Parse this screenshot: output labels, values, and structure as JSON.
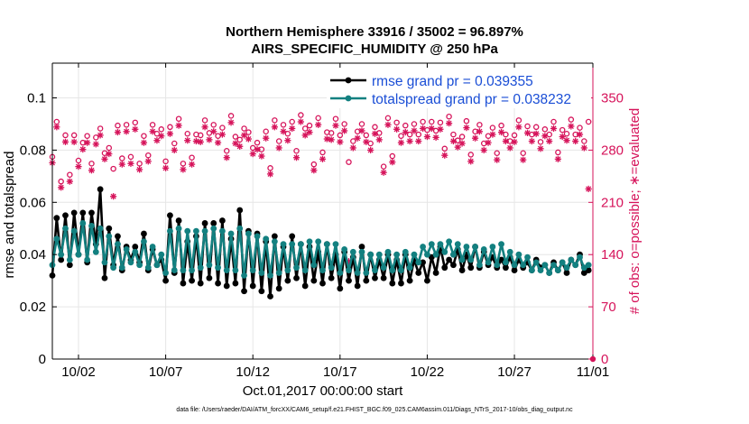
{
  "chart_data": {
    "type": "line",
    "title": "Northern Hemisphere 33916 / 35002 = 96.897%",
    "subtitle": "AIRS_SPECIFIC_HUMIDITY @ 250 hPa",
    "xlabel": "Oct.01,2017 00:00:00 start",
    "ylabel": "rmse and totalspread",
    "y2label": "# of obs: o=possible; ∗=evaluated",
    "footnote": "data file: /Users/raeder/DAI/ATM_forcXX/CAM6_setup/f.e21.FHIST_BGC.f09_025.CAM6assim.011/Diags_NTrS_2017-10/obs_diag_output.nc",
    "xlim": [
      0.5,
      31.5
    ],
    "ylim": [
      0,
      0.1133
    ],
    "y2lim": [
      0,
      396.6
    ],
    "xticks": [
      2,
      7,
      12,
      17,
      22,
      27,
      32
    ],
    "xtick_labels": [
      "10/02",
      "10/07",
      "10/12",
      "10/17",
      "10/22",
      "10/27",
      "11/01"
    ],
    "yticks": [
      0,
      0.02,
      0.04,
      0.06,
      0.08,
      0.1
    ],
    "ytick_labels": [
      "0",
      "0.02",
      "0.04",
      "0.06",
      "0.08",
      "0.1"
    ],
    "y2ticks": [
      0,
      70,
      140,
      210,
      280,
      350
    ],
    "y2tick_labels": [
      "0",
      "70",
      "140",
      "210",
      "280",
      "350"
    ],
    "grid": true,
    "legend_position": "top-right",
    "colors": {
      "rmse": "#000000",
      "spread": "#138080",
      "obs": "#d6135a",
      "legend_text": "#1a4ed6"
    },
    "series": [
      {
        "name": "rmse grand pr = 0.039355",
        "style": "line-marker",
        "x": [
          0.5,
          0.75,
          1.0,
          1.25,
          1.5,
          1.75,
          2.0,
          2.25,
          2.5,
          2.75,
          3.0,
          3.25,
          3.5,
          3.75,
          4.0,
          4.25,
          4.5,
          4.75,
          5.0,
          5.25,
          5.5,
          5.75,
          6.0,
          6.25,
          6.5,
          6.75,
          7.0,
          7.25,
          7.5,
          7.75,
          8.0,
          8.25,
          8.5,
          8.75,
          9.0,
          9.25,
          9.5,
          9.75,
          10.0,
          10.25,
          10.5,
          10.75,
          11.0,
          11.25,
          11.5,
          11.75,
          12.0,
          12.25,
          12.5,
          12.75,
          13.0,
          13.25,
          13.5,
          13.75,
          14.0,
          14.25,
          14.5,
          14.75,
          15.0,
          15.25,
          15.5,
          15.75,
          16.0,
          16.25,
          16.5,
          16.75,
          17.0,
          17.25,
          17.5,
          17.75,
          18.0,
          18.25,
          18.5,
          18.75,
          19.0,
          19.25,
          19.5,
          19.75,
          20.0,
          20.25,
          20.5,
          20.75,
          21.0,
          21.25,
          21.5,
          21.75,
          22.0,
          22.25,
          22.5,
          22.75,
          23.0,
          23.25,
          23.5,
          23.75,
          24.0,
          24.25,
          24.5,
          24.75,
          25.0,
          25.25,
          25.5,
          25.75,
          26.0,
          26.25,
          26.5,
          26.75,
          27.0,
          27.25,
          27.5,
          27.75,
          28.0,
          28.25,
          28.5,
          28.75,
          29.0,
          29.25,
          29.5,
          29.75,
          30.0,
          30.25,
          30.5,
          30.75,
          31.0,
          31.25
        ],
        "y": [
          0.032,
          0.054,
          0.038,
          0.055,
          0.036,
          0.056,
          0.04,
          0.056,
          0.037,
          0.056,
          0.044,
          0.065,
          0.031,
          0.05,
          0.036,
          0.047,
          0.034,
          0.043,
          0.038,
          0.043,
          0.037,
          0.048,
          0.034,
          0.042,
          0.036,
          0.038,
          0.03,
          0.055,
          0.033,
          0.053,
          0.029,
          0.045,
          0.03,
          0.047,
          0.029,
          0.052,
          0.031,
          0.052,
          0.029,
          0.053,
          0.028,
          0.046,
          0.029,
          0.057,
          0.026,
          0.049,
          0.028,
          0.048,
          0.026,
          0.045,
          0.024,
          0.047,
          0.027,
          0.043,
          0.03,
          0.047,
          0.031,
          0.044,
          0.028,
          0.043,
          0.03,
          0.041,
          0.029,
          0.044,
          0.031,
          0.04,
          0.027,
          0.041,
          0.03,
          0.039,
          0.028,
          0.043,
          0.03,
          0.04,
          0.031,
          0.038,
          0.031,
          0.04,
          0.029,
          0.038,
          0.029,
          0.04,
          0.03,
          0.038,
          0.033,
          0.037,
          0.03,
          0.039,
          0.033,
          0.043,
          0.035,
          0.038,
          0.036,
          0.042,
          0.034,
          0.04,
          0.035,
          0.043,
          0.035,
          0.041,
          0.036,
          0.039,
          0.035,
          0.038,
          0.035,
          0.039,
          0.034,
          0.038,
          0.035,
          0.037,
          0.034,
          0.038,
          0.035,
          0.036,
          0.033,
          0.037,
          0.034,
          0.037,
          0.033,
          0.038,
          0.036,
          0.04,
          0.033,
          0.034
        ]
      },
      {
        "name": "totalspread grand pr = 0.038232",
        "style": "line-marker",
        "x": [
          0.5,
          0.75,
          1.0,
          1.25,
          1.5,
          1.75,
          2.0,
          2.25,
          2.5,
          2.75,
          3.0,
          3.25,
          3.5,
          3.75,
          4.0,
          4.25,
          4.5,
          4.75,
          5.0,
          5.25,
          5.5,
          5.75,
          6.0,
          6.25,
          6.5,
          6.75,
          7.0,
          7.25,
          7.5,
          7.75,
          8.0,
          8.25,
          8.5,
          8.75,
          9.0,
          9.25,
          9.5,
          9.75,
          10.0,
          10.25,
          10.5,
          10.75,
          11.0,
          11.25,
          11.5,
          11.75,
          12.0,
          12.25,
          12.5,
          12.75,
          13.0,
          13.25,
          13.5,
          13.75,
          14.0,
          14.25,
          14.5,
          14.75,
          15.0,
          15.25,
          15.5,
          15.75,
          16.0,
          16.25,
          16.5,
          16.75,
          17.0,
          17.25,
          17.5,
          17.75,
          18.0,
          18.25,
          18.5,
          18.75,
          19.0,
          19.25,
          19.5,
          19.75,
          20.0,
          20.25,
          20.5,
          20.75,
          21.0,
          21.25,
          21.5,
          21.75,
          22.0,
          22.25,
          22.5,
          22.75,
          23.0,
          23.25,
          23.5,
          23.75,
          24.0,
          24.25,
          24.5,
          24.75,
          25.0,
          25.25,
          25.5,
          25.75,
          26.0,
          26.25,
          26.5,
          26.75,
          27.0,
          27.25,
          27.5,
          27.75,
          28.0,
          28.25,
          28.5,
          28.75,
          29.0,
          29.25,
          29.5,
          29.75,
          30.0,
          30.25,
          30.5,
          30.75,
          31.0,
          31.25
        ],
        "y": [
          0.036,
          0.046,
          0.04,
          0.05,
          0.038,
          0.049,
          0.04,
          0.052,
          0.038,
          0.051,
          0.041,
          0.05,
          0.037,
          0.047,
          0.035,
          0.044,
          0.035,
          0.042,
          0.037,
          0.041,
          0.036,
          0.045,
          0.035,
          0.043,
          0.036,
          0.04,
          0.033,
          0.049,
          0.034,
          0.05,
          0.034,
          0.049,
          0.034,
          0.049,
          0.035,
          0.049,
          0.036,
          0.05,
          0.035,
          0.049,
          0.034,
          0.048,
          0.034,
          0.05,
          0.032,
          0.048,
          0.034,
          0.047,
          0.033,
          0.046,
          0.032,
          0.045,
          0.033,
          0.044,
          0.034,
          0.044,
          0.035,
          0.044,
          0.034,
          0.045,
          0.036,
          0.045,
          0.034,
          0.044,
          0.035,
          0.044,
          0.033,
          0.042,
          0.034,
          0.041,
          0.033,
          0.041,
          0.033,
          0.04,
          0.034,
          0.04,
          0.035,
          0.041,
          0.034,
          0.04,
          0.034,
          0.041,
          0.035,
          0.04,
          0.037,
          0.043,
          0.04,
          0.044,
          0.04,
          0.044,
          0.041,
          0.045,
          0.04,
          0.044,
          0.038,
          0.043,
          0.038,
          0.043,
          0.036,
          0.042,
          0.037,
          0.043,
          0.036,
          0.044,
          0.037,
          0.041,
          0.036,
          0.04,
          0.036,
          0.039,
          0.034,
          0.037,
          0.034,
          0.036,
          0.033,
          0.036,
          0.034,
          0.037,
          0.035,
          0.038,
          0.036,
          0.039,
          0.035,
          0.036
        ]
      },
      {
        "name": "possible",
        "style": "o",
        "x": [
          0.5,
          0.75,
          1.0,
          1.25,
          1.5,
          1.75,
          2.0,
          2.25,
          2.5,
          2.75,
          3.0,
          3.25,
          3.5,
          3.75,
          4.0,
          4.25,
          4.5,
          4.75,
          5.0,
          5.25,
          5.5,
          5.75,
          6.0,
          6.25,
          6.5,
          6.75,
          7.0,
          7.25,
          7.5,
          7.75,
          8.0,
          8.25,
          8.5,
          8.75,
          9.0,
          9.25,
          9.5,
          9.75,
          10.0,
          10.25,
          10.5,
          10.75,
          11.0,
          11.25,
          11.5,
          11.75,
          12.0,
          12.25,
          12.5,
          12.75,
          13.0,
          13.25,
          13.5,
          13.75,
          14.0,
          14.25,
          14.5,
          14.75,
          15.0,
          15.25,
          15.5,
          15.75,
          16.0,
          16.25,
          16.5,
          16.75,
          17.0,
          17.25,
          17.5,
          17.75,
          18.0,
          18.25,
          18.5,
          18.75,
          19.0,
          19.25,
          19.5,
          19.75,
          20.0,
          20.25,
          20.5,
          20.75,
          21.0,
          21.25,
          21.5,
          21.75,
          22.0,
          22.25,
          22.5,
          22.75,
          23.0,
          23.25,
          23.5,
          23.75,
          24.0,
          24.25,
          24.5,
          24.75,
          25.0,
          25.25,
          25.5,
          25.75,
          26.0,
          26.25,
          26.5,
          26.75,
          27.0,
          27.25,
          27.5,
          27.75,
          28.0,
          28.25,
          28.5,
          28.75,
          29.0,
          29.25,
          29.5,
          29.75,
          30.0,
          30.25,
          30.5,
          30.75,
          31.0,
          31.25
        ],
        "y": [
          271,
          318,
          238,
          300,
          247,
          300,
          266,
          290,
          299,
          262,
          297,
          309,
          276,
          283,
          255,
          313,
          269,
          314,
          271,
          317,
          262,
          299,
          273,
          314,
          302,
          308,
          265,
          311,
          289,
          322,
          262,
          302,
          270,
          301,
          300,
          320,
          303,
          314,
          299,
          310,
          279,
          326,
          298,
          294,
          309,
          304,
          283,
          290,
          281,
          305,
          256,
          320,
          292,
          314,
          302,
          318,
          279,
          327,
          309,
          313,
          261,
          323,
          277,
          304,
          303,
          322,
          300,
          315,
          264,
          292,
          305,
          315,
          300,
          289,
          311,
          303,
          258,
          323,
          272,
          317,
          299,
          313,
          301,
          315,
          301,
          318,
          307,
          318,
          306,
          317,
          282,
          325,
          301,
          293,
          298,
          319,
          274,
          305,
          314,
          289,
          299,
          310,
          276,
          313,
          301,
          292,
          300,
          320,
          276,
          312,
          301,
          311,
          291,
          308,
          301,
          318,
          277,
          307,
          302,
          321,
          301,
          310,
          292,
          318
        ]
      },
      {
        "name": "evaluated",
        "style": "*",
        "x": [
          0.5,
          0.75,
          1.0,
          1.25,
          1.5,
          1.75,
          2.0,
          2.25,
          2.5,
          2.75,
          3.0,
          3.25,
          3.5,
          3.75,
          4.0,
          4.25,
          4.5,
          4.75,
          5.0,
          5.25,
          5.5,
          5.75,
          6.0,
          6.25,
          6.5,
          6.75,
          7.0,
          7.25,
          7.5,
          7.75,
          8.0,
          8.25,
          8.5,
          8.75,
          9.0,
          9.25,
          9.5,
          9.75,
          10.0,
          10.25,
          10.5,
          10.75,
          11.0,
          11.25,
          11.5,
          11.75,
          12.0,
          12.25,
          12.5,
          12.75,
          13.0,
          13.25,
          13.5,
          13.75,
          14.0,
          14.25,
          14.5,
          14.75,
          15.0,
          15.25,
          15.5,
          15.75,
          16.0,
          16.25,
          16.5,
          16.75,
          17.0,
          17.25,
          17.5,
          17.75,
          18.0,
          18.25,
          18.5,
          18.75,
          19.0,
          19.25,
          19.5,
          19.75,
          20.0,
          20.25,
          20.5,
          20.75,
          21.0,
          21.25,
          21.5,
          21.75,
          22.0,
          22.25,
          22.5,
          22.75,
          23.0,
          23.25,
          23.5,
          23.75,
          24.0,
          24.25,
          24.5,
          24.75,
          25.0,
          25.25,
          25.5,
          25.75,
          26.0,
          26.25,
          26.5,
          26.75,
          27.0,
          27.25,
          27.5,
          27.75,
          28.0,
          28.25,
          28.5,
          28.75,
          29.0,
          29.25,
          29.5,
          29.75,
          30.0,
          30.25,
          30.5,
          30.75,
          31.0,
          31.25
        ],
        "y": [
          263,
          311,
          230,
          291,
          238,
          291,
          258,
          281,
          290,
          253,
          288,
          300,
          268,
          275,
          218,
          304,
          261,
          305,
          262,
          308,
          254,
          290,
          265,
          305,
          293,
          299,
          256,
          302,
          280,
          313,
          254,
          293,
          261,
          292,
          291,
          311,
          294,
          305,
          290,
          301,
          270,
          317,
          289,
          285,
          300,
          295,
          275,
          281,
          272,
          296,
          248,
          311,
          283,
          305,
          293,
          309,
          270,
          318,
          300,
          304,
          253,
          314,
          268,
          295,
          294,
          313,
          291,
          306,
          131,
          283,
          296,
          306,
          291,
          280,
          302,
          294,
          250,
          314,
          264,
          308,
          290,
          304,
          292,
          306,
          292,
          309,
          298,
          309,
          297,
          308,
          273,
          316,
          292,
          284,
          289,
          310,
          265,
          296,
          305,
          280,
          290,
          301,
          267,
          304,
          292,
          283,
          291,
          311,
          267,
          303,
          292,
          302,
          282,
          299,
          292,
          309,
          268,
          298,
          293,
          312,
          292,
          301,
          283,
          228
        ]
      }
    ]
  }
}
